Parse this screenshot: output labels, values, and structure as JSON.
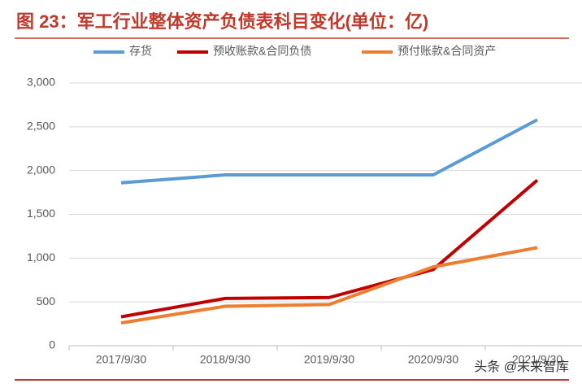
{
  "chart_data": {
    "type": "line",
    "title": "图 23：军工行业整体资产负债表科目变化(单位：亿)",
    "categories": [
      "2017/9/30",
      "2018/9/30",
      "2019/9/30",
      "2020/9/30",
      "2021/9/30"
    ],
    "series": [
      {
        "name": "存货",
        "color": "#5b9bd5",
        "values": [
          1860,
          1950,
          1950,
          1950,
          2580
        ]
      },
      {
        "name": "预收账款&合同负债",
        "color": "#c00000",
        "values": [
          330,
          540,
          550,
          870,
          1890
        ]
      },
      {
        "name": "预付账款&合同资产",
        "color": "#ed7d31",
        "values": [
          260,
          450,
          470,
          900,
          1120
        ]
      }
    ],
    "ylim": [
      0,
      3000
    ],
    "yticks": [
      0,
      500,
      {
        "value": 1000,
        "label": "1,000"
      },
      {
        "value": 1500,
        "label": "1,500"
      },
      {
        "value": 2000,
        "label": "2,000"
      },
      {
        "value": 2500,
        "label": "2,500"
      },
      {
        "value": 3000,
        "label": "3,000"
      }
    ],
    "grid": true,
    "watermark": "头条 @未来智库"
  }
}
